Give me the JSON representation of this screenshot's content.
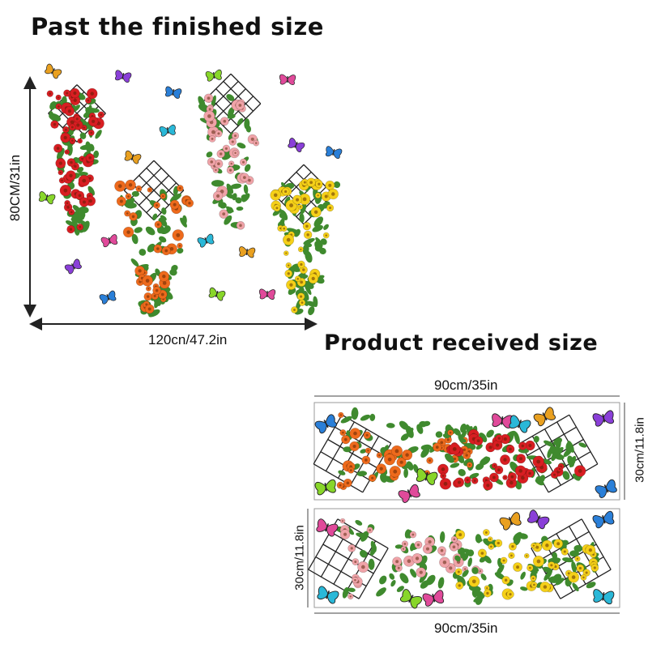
{
  "finished": {
    "title": "Past the finished size",
    "height_label": "80CM/31in",
    "width_label": "120cn/47.2in"
  },
  "received": {
    "title": "Product received size",
    "panel1": {
      "width_label": "90cm/35in",
      "height_label": "30cm/11.8in"
    },
    "panel2": {
      "width_label": "90cm/35in",
      "height_label": "30cm/11.8in"
    }
  },
  "flower_colors": {
    "red": "#d81e22",
    "orange": "#ee6a1c",
    "pink": "#f0a3a8",
    "yellow": "#f5d018",
    "leaf": "#3f8a2e"
  },
  "butterfly_colors": [
    "#e9a020",
    "#8a3fd8",
    "#2a7fd8",
    "#88d62a",
    "#e04a9a",
    "#2ab8d8"
  ]
}
